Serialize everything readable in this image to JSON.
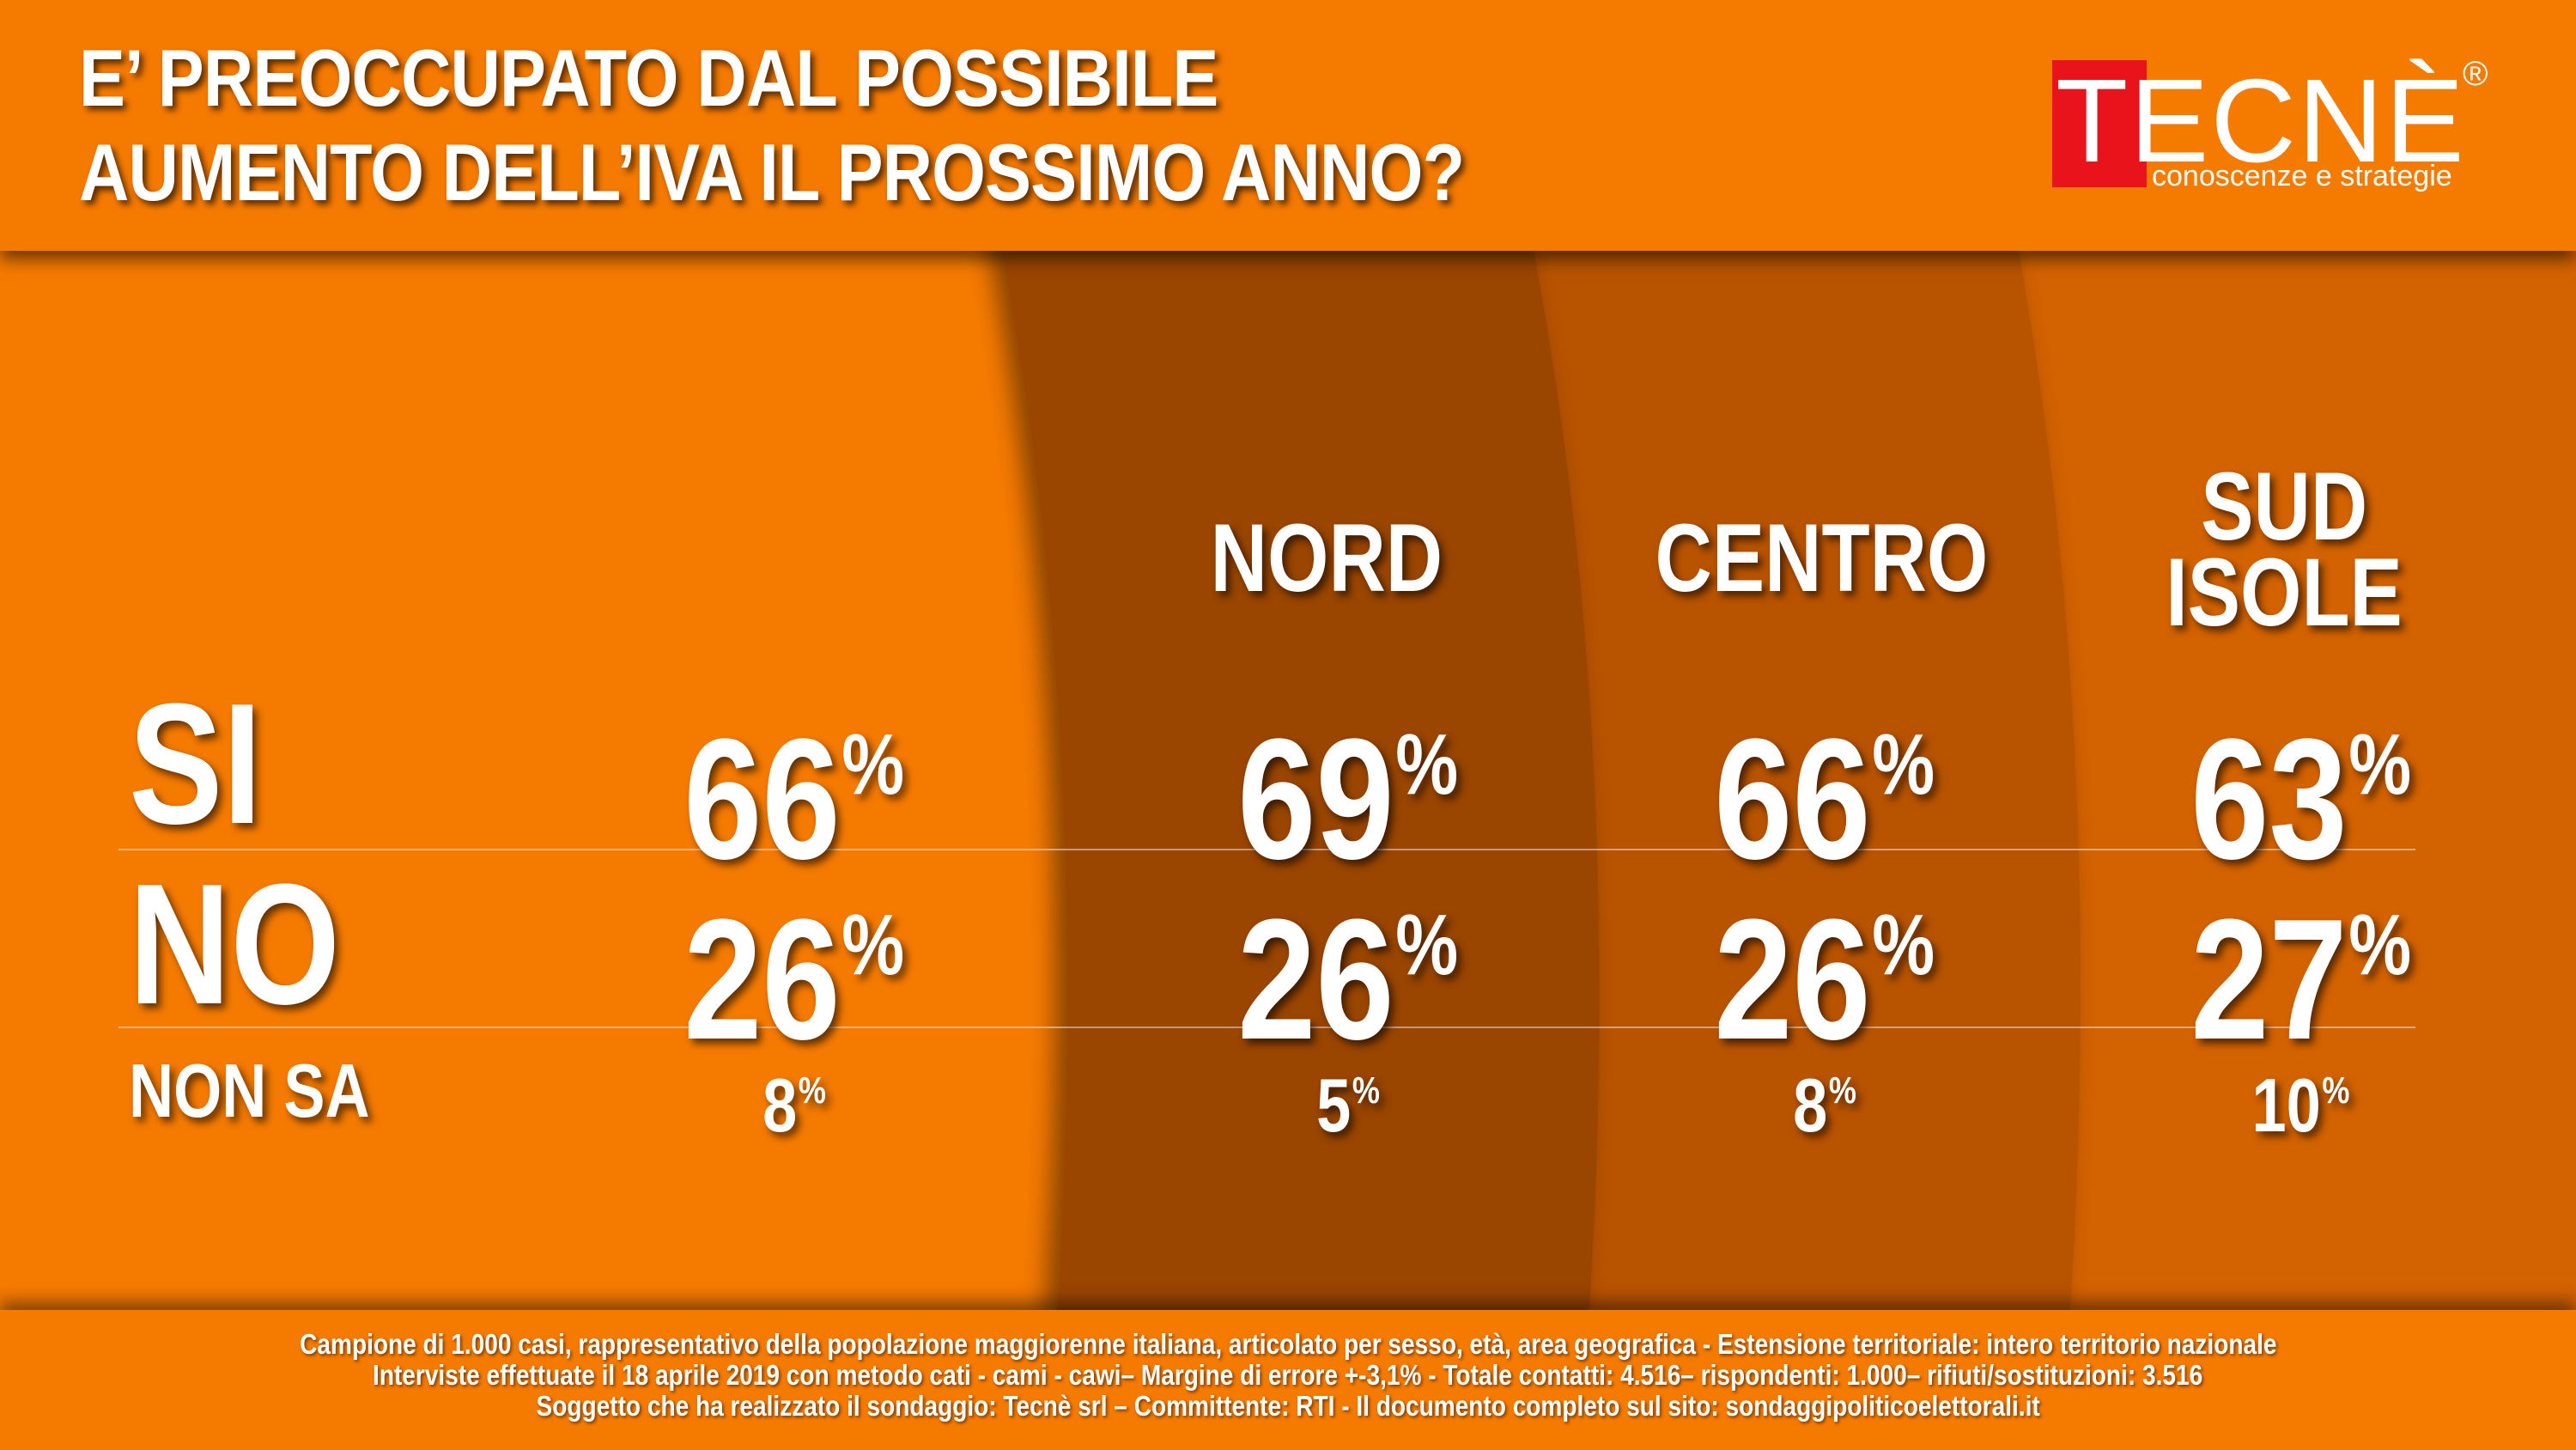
{
  "header": {
    "title_line1": "E’ PREOCCUPATO DAL POSSIBILE",
    "title_line2": "AUMENTO DELL’IVA IL PROSSIMO ANNO?"
  },
  "logo": {
    "letter": "T",
    "word": "ECNÈ",
    "registered": "®",
    "tagline": "conoscenze e strategie"
  },
  "colors": {
    "background": "#f57a00",
    "nord_panel": "#9a4500",
    "centro_panel": "#b85200",
    "sud_panel": "#d36200",
    "logo_red": "#e8131b"
  },
  "chart_data": {
    "type": "table",
    "title": "E’ PREOCCUPATO DAL POSSIBILE AUMENTO DELL’IVA IL PROSSIMO ANNO?",
    "columns": [
      "",
      "NORD",
      "CENTRO",
      "SUD ISOLE"
    ],
    "rows": [
      {
        "label": "SI",
        "values": [
          66,
          69,
          66,
          63
        ],
        "display": [
          "66",
          "69",
          "66",
          "63"
        ]
      },
      {
        "label": "NO",
        "values": [
          26,
          26,
          26,
          27
        ],
        "display": [
          "26",
          "26",
          "26",
          "27"
        ]
      },
      {
        "label": "NON SA",
        "values": [
          8,
          5,
          8,
          10
        ],
        "display": [
          "8",
          "5",
          "8",
          "10"
        ]
      }
    ],
    "unit": "%"
  },
  "columns": {
    "nord": "NORD",
    "centro": "CENTRO",
    "sud_line1": "SUD",
    "sud_line2": "ISOLE"
  },
  "rows": {
    "si": {
      "label": "SI",
      "totale": "66",
      "nord": "69",
      "centro": "66",
      "sud": "63"
    },
    "no": {
      "label": "NO",
      "totale": "26",
      "nord": "26",
      "centro": "26",
      "sud": "27"
    },
    "nonsa": {
      "label": "NON SA",
      "totale": "8",
      "nord": "5",
      "centro": "8",
      "sud": "10"
    }
  },
  "unit": "%",
  "footer": {
    "line1": "Campione di 1.000 casi, rappresentativo della popolazione maggiorenne italiana, articolato per sesso, età, area geografica - Estensione territoriale: intero territorio nazionale",
    "line2": "Interviste effettuate il 18 aprile 2019 con metodo cati - cami - cawi– Margine di errore +-3,1%  - Totale contatti: 4.516– rispondenti:  1.000– rifiuti/sostituzioni: 3.516",
    "line3": "Soggetto che ha realizzato il sondaggio: Tecnè srl – Committente: RTI - Il documento completo sul sito: sondaggipoliticoelettorali.it"
  }
}
